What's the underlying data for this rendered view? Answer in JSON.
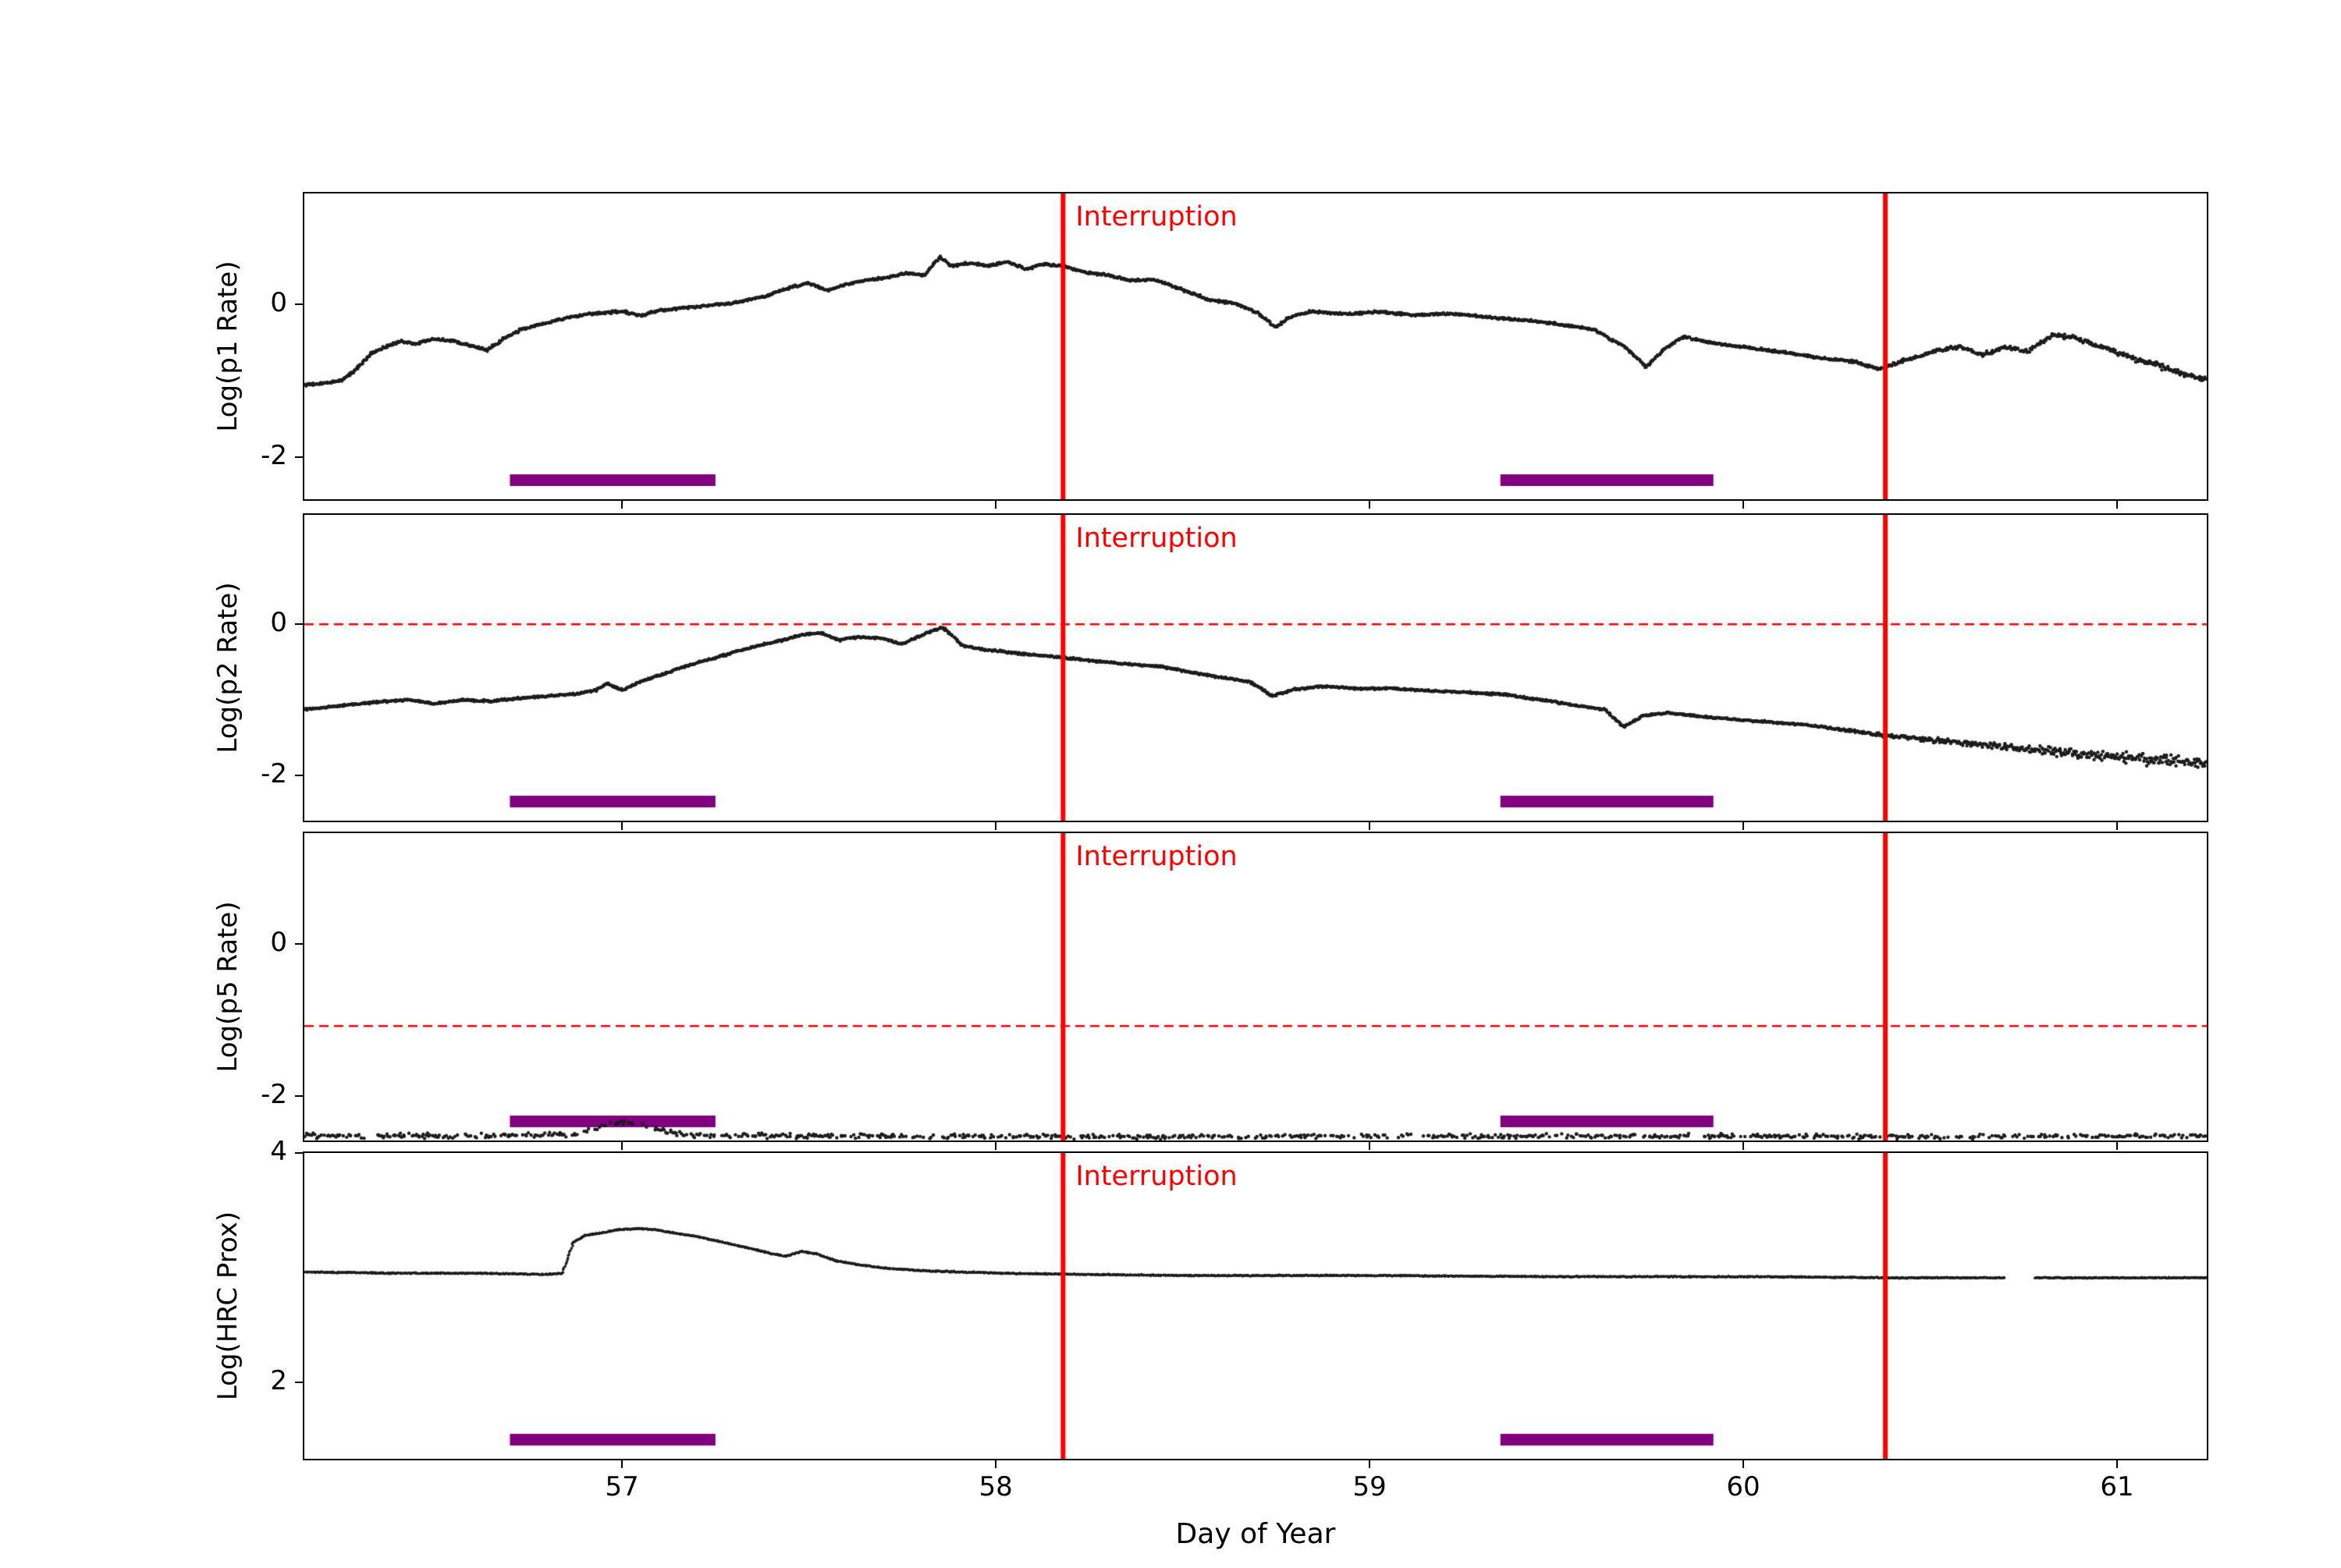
{
  "figure": {
    "background": "#ffffff",
    "xlabel": "Day of Year",
    "xlim": [
      56.15,
      61.24
    ],
    "xticks": [
      57,
      58,
      59,
      60,
      61
    ],
    "point_color": "#1c1c1c",
    "interruption": {
      "label": "Interruption",
      "color": "#ff0000",
      "x_positions": [
        58.18,
        60.38
      ]
    },
    "bands": {
      "color": "#800080",
      "ranges": [
        [
          56.7,
          57.25
        ],
        [
          59.35,
          59.92
        ]
      ]
    }
  },
  "chart_data": [
    {
      "type": "scatter",
      "ylabel": "Log(p1 Rate)",
      "ylim": [
        -2.55,
        1.45
      ],
      "yticks": [
        0,
        -2
      ],
      "ref_line": null,
      "noise": 0.022,
      "noise_ramp": {
        "from_x": 60.3,
        "max": 0.055
      },
      "dropout": 0,
      "gaps": [],
      "scatter_density_per_unit": 420,
      "dot_radius": 2.2,
      "points": [
        [
          56.17,
          -1.05
        ],
        [
          56.21,
          -1.03
        ],
        [
          56.25,
          -0.99
        ],
        [
          56.29,
          -0.85
        ],
        [
          56.33,
          -0.64
        ],
        [
          56.37,
          -0.55
        ],
        [
          56.41,
          -0.48
        ],
        [
          56.45,
          -0.52
        ],
        [
          56.49,
          -0.45
        ],
        [
          56.54,
          -0.47
        ],
        [
          56.59,
          -0.53
        ],
        [
          56.64,
          -0.6
        ],
        [
          56.68,
          -0.46
        ],
        [
          56.73,
          -0.33
        ],
        [
          56.79,
          -0.25
        ],
        [
          56.86,
          -0.17
        ],
        [
          56.93,
          -0.12
        ],
        [
          57.0,
          -0.09
        ],
        [
          57.05,
          -0.15
        ],
        [
          57.1,
          -0.08
        ],
        [
          57.16,
          -0.05
        ],
        [
          57.22,
          -0.02
        ],
        [
          57.3,
          0.02
        ],
        [
          57.38,
          0.1
        ],
        [
          57.45,
          0.22
        ],
        [
          57.5,
          0.28
        ],
        [
          57.55,
          0.18
        ],
        [
          57.6,
          0.26
        ],
        [
          57.66,
          0.32
        ],
        [
          57.71,
          0.35
        ],
        [
          57.76,
          0.41
        ],
        [
          57.81,
          0.38
        ],
        [
          57.85,
          0.62
        ],
        [
          57.88,
          0.5
        ],
        [
          57.93,
          0.54
        ],
        [
          57.98,
          0.5
        ],
        [
          58.03,
          0.56
        ],
        [
          58.08,
          0.46
        ],
        [
          58.13,
          0.53
        ],
        [
          58.18,
          0.5
        ],
        [
          58.23,
          0.43
        ],
        [
          58.3,
          0.38
        ],
        [
          58.36,
          0.31
        ],
        [
          58.42,
          0.33
        ],
        [
          58.5,
          0.19
        ],
        [
          58.57,
          0.06
        ],
        [
          58.64,
          0.01
        ],
        [
          58.7,
          -0.11
        ],
        [
          58.75,
          -0.3
        ],
        [
          58.79,
          -0.16
        ],
        [
          58.85,
          -0.09
        ],
        [
          58.93,
          -0.13
        ],
        [
          59.02,
          -0.1
        ],
        [
          59.12,
          -0.14
        ],
        [
          59.22,
          -0.12
        ],
        [
          59.32,
          -0.17
        ],
        [
          59.42,
          -0.21
        ],
        [
          59.52,
          -0.27
        ],
        [
          59.6,
          -0.33
        ],
        [
          59.68,
          -0.55
        ],
        [
          59.74,
          -0.82
        ],
        [
          59.79,
          -0.58
        ],
        [
          59.84,
          -0.42
        ],
        [
          59.91,
          -0.5
        ],
        [
          60.0,
          -0.56
        ],
        [
          60.1,
          -0.62
        ],
        [
          60.2,
          -0.7
        ],
        [
          60.3,
          -0.75
        ],
        [
          60.36,
          -0.85
        ],
        [
          60.44,
          -0.72
        ],
        [
          60.52,
          -0.6
        ],
        [
          60.58,
          -0.55
        ],
        [
          60.64,
          -0.66
        ],
        [
          60.7,
          -0.56
        ],
        [
          60.76,
          -0.62
        ],
        [
          60.83,
          -0.4
        ],
        [
          60.89,
          -0.44
        ],
        [
          60.96,
          -0.56
        ],
        [
          61.04,
          -0.7
        ],
        [
          61.11,
          -0.8
        ],
        [
          61.17,
          -0.9
        ],
        [
          61.23,
          -0.97
        ]
      ]
    },
    {
      "type": "scatter",
      "ylabel": "Log(p2 Rate)",
      "ylim": [
        -2.6,
        1.45
      ],
      "yticks": [
        0,
        -2
      ],
      "ref_line": 0,
      "noise": 0.018,
      "noise_ramp": {
        "from_x": 60.2,
        "max": 0.12
      },
      "dropout": 0,
      "gaps": [],
      "scatter_density_per_unit": 420,
      "dot_radius": 2.2,
      "points": [
        [
          56.17,
          -1.12
        ],
        [
          56.25,
          -1.08
        ],
        [
          56.34,
          -1.03
        ],
        [
          56.43,
          -1.0
        ],
        [
          56.5,
          -1.05
        ],
        [
          56.58,
          -1.0
        ],
        [
          56.65,
          -1.02
        ],
        [
          56.72,
          -0.98
        ],
        [
          56.8,
          -0.95
        ],
        [
          56.88,
          -0.92
        ],
        [
          56.93,
          -0.87
        ],
        [
          56.96,
          -0.78
        ],
        [
          57.0,
          -0.87
        ],
        [
          57.06,
          -0.74
        ],
        [
          57.13,
          -0.62
        ],
        [
          57.2,
          -0.51
        ],
        [
          57.28,
          -0.4
        ],
        [
          57.35,
          -0.3
        ],
        [
          57.42,
          -0.22
        ],
        [
          57.48,
          -0.14
        ],
        [
          57.53,
          -0.11
        ],
        [
          57.58,
          -0.21
        ],
        [
          57.63,
          -0.17
        ],
        [
          57.69,
          -0.18
        ],
        [
          57.75,
          -0.26
        ],
        [
          57.82,
          -0.1
        ],
        [
          57.86,
          -0.04
        ],
        [
          57.91,
          -0.28
        ],
        [
          57.96,
          -0.33
        ],
        [
          58.02,
          -0.36
        ],
        [
          58.09,
          -0.4
        ],
        [
          58.16,
          -0.43
        ],
        [
          58.25,
          -0.48
        ],
        [
          58.34,
          -0.52
        ],
        [
          58.44,
          -0.56
        ],
        [
          58.52,
          -0.63
        ],
        [
          58.6,
          -0.7
        ],
        [
          58.68,
          -0.76
        ],
        [
          58.74,
          -0.95
        ],
        [
          58.8,
          -0.86
        ],
        [
          58.88,
          -0.82
        ],
        [
          58.96,
          -0.85
        ],
        [
          59.06,
          -0.85
        ],
        [
          59.16,
          -0.88
        ],
        [
          59.26,
          -0.9
        ],
        [
          59.36,
          -0.93
        ],
        [
          59.46,
          -1.0
        ],
        [
          59.56,
          -1.08
        ],
        [
          59.63,
          -1.13
        ],
        [
          59.68,
          -1.36
        ],
        [
          59.73,
          -1.21
        ],
        [
          59.8,
          -1.17
        ],
        [
          59.88,
          -1.22
        ],
        [
          59.96,
          -1.25
        ],
        [
          60.06,
          -1.29
        ],
        [
          60.16,
          -1.33
        ],
        [
          60.26,
          -1.39
        ],
        [
          60.34,
          -1.45
        ],
        [
          60.44,
          -1.5
        ],
        [
          60.54,
          -1.55
        ],
        [
          60.64,
          -1.6
        ],
        [
          60.74,
          -1.64
        ],
        [
          60.84,
          -1.69
        ],
        [
          60.94,
          -1.73
        ],
        [
          61.04,
          -1.77
        ],
        [
          61.14,
          -1.8
        ],
        [
          61.23,
          -1.82
        ]
      ]
    },
    {
      "type": "scatter",
      "ylabel": "Log(p5 Rate)",
      "ylim": [
        -2.58,
        1.45
      ],
      "yticks": [
        0,
        -2
      ],
      "ref_line": -1.08,
      "noise": 0.045,
      "noise_ramp": null,
      "dropout": 0.45,
      "gaps": [],
      "scatter_density_per_unit": 300,
      "dot_radius": 2.2,
      "points": [
        [
          56.17,
          -2.52
        ],
        [
          56.6,
          -2.52
        ],
        [
          56.88,
          -2.5
        ],
        [
          56.94,
          -2.4
        ],
        [
          57.0,
          -2.34
        ],
        [
          57.06,
          -2.37
        ],
        [
          57.12,
          -2.46
        ],
        [
          57.18,
          -2.51
        ],
        [
          57.6,
          -2.52
        ],
        [
          58.5,
          -2.53
        ],
        [
          59.5,
          -2.52
        ],
        [
          60.5,
          -2.53
        ],
        [
          61.23,
          -2.52
        ]
      ]
    },
    {
      "type": "scatter",
      "ylabel": "Log(HRC Prox)",
      "ylim": [
        1.33,
        4.0
      ],
      "yticks": [
        4,
        2
      ],
      "ref_line": null,
      "noise": 0.007,
      "noise_ramp": null,
      "dropout": 0,
      "gaps": [
        [
          60.7,
          60.78
        ]
      ],
      "scatter_density_per_unit": 520,
      "dot_radius": 1.8,
      "points": [
        [
          56.17,
          2.96
        ],
        [
          56.4,
          2.95
        ],
        [
          56.62,
          2.95
        ],
        [
          56.8,
          2.94
        ],
        [
          56.84,
          2.95
        ],
        [
          56.87,
          3.22
        ],
        [
          56.9,
          3.28
        ],
        [
          56.94,
          3.3
        ],
        [
          56.99,
          3.33
        ],
        [
          57.04,
          3.34
        ],
        [
          57.09,
          3.33
        ],
        [
          57.14,
          3.3
        ],
        [
          57.2,
          3.27
        ],
        [
          57.27,
          3.22
        ],
        [
          57.34,
          3.17
        ],
        [
          57.4,
          3.12
        ],
        [
          57.44,
          3.1
        ],
        [
          57.48,
          3.14
        ],
        [
          57.52,
          3.12
        ],
        [
          57.57,
          3.06
        ],
        [
          57.64,
          3.02
        ],
        [
          57.72,
          2.99
        ],
        [
          57.82,
          2.97
        ],
        [
          57.92,
          2.96
        ],
        [
          58.02,
          2.95
        ],
        [
          58.22,
          2.94
        ],
        [
          58.52,
          2.93
        ],
        [
          59.02,
          2.93
        ],
        [
          59.52,
          2.92
        ],
        [
          60.02,
          2.92
        ],
        [
          60.42,
          2.91
        ],
        [
          60.7,
          2.91
        ],
        [
          60.78,
          2.91
        ],
        [
          61.0,
          2.91
        ],
        [
          61.23,
          2.91
        ]
      ]
    }
  ]
}
